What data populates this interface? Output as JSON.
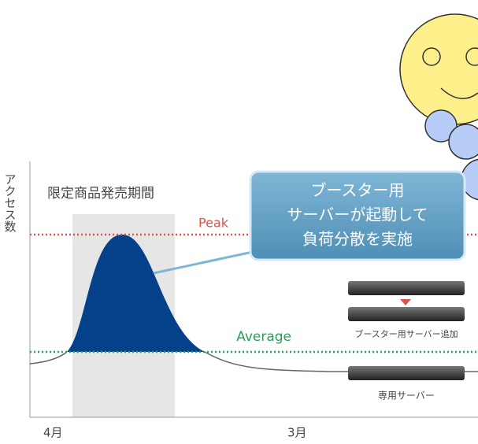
{
  "y_axis_label": "アクセス数",
  "period_label": "限定商品発売期間",
  "peak_label": "Peak",
  "average_label": "Average",
  "callout": {
    "lines": [
      "ブースター用",
      "サーバーが起動して",
      "負荷分散を実施"
    ]
  },
  "servers": {
    "booster_label": "ブースター用サーバー追加",
    "dedicated_label": "専用サーバー"
  },
  "x_labels": [
    "4月",
    "3月"
  ]
}
